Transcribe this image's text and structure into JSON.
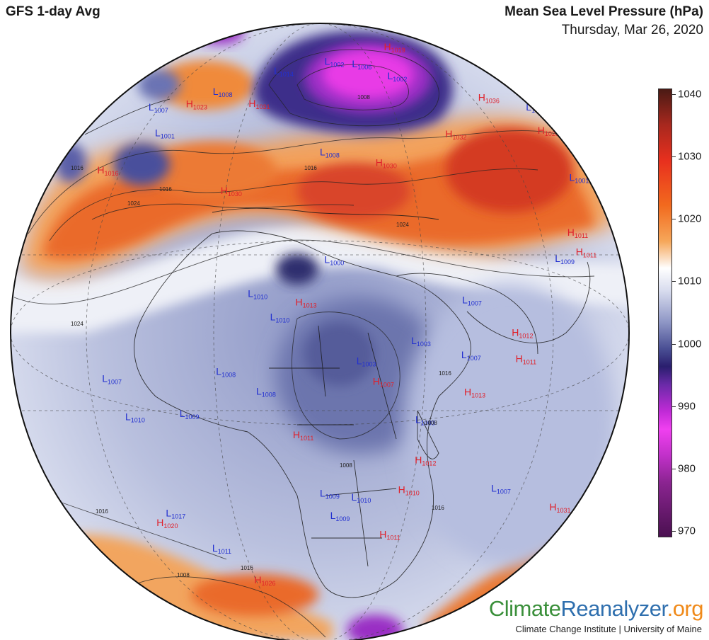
{
  "header": {
    "model_title": "GFS 1-day Avg",
    "variable_title": "Mean Sea Level Pressure (hPa)",
    "date": "Thursday, Mar 26, 2020"
  },
  "colorbar": {
    "ticks": [
      "1040",
      "1030",
      "1020",
      "1010",
      "1000",
      "990",
      "980",
      "970"
    ]
  },
  "branding": {
    "part1": "Climate",
    "part2": "Reanalyzer",
    "part3": ".org",
    "subtitle": "Climate Change Institute | University of Maine"
  },
  "colors": {
    "high_label": "#e0202a",
    "low_label": "#2230d0"
  },
  "pressure_centers": [
    {
      "type": "L",
      "value": "1007",
      "lat": 55,
      "lon": -60
    },
    {
      "type": "L",
      "value": "1001",
      "lat": 52,
      "lon": -45
    },
    {
      "type": "L",
      "value": "1000",
      "lat": 33,
      "lon": 16
    },
    {
      "type": "L",
      "value": "1010",
      "lat": 26,
      "lon": 0
    },
    {
      "type": "L",
      "value": "1010",
      "lat": 22,
      "lon": 5
    },
    {
      "type": "L",
      "value": "1003",
      "lat": 14,
      "lon": 22
    },
    {
      "type": "L",
      "value": "1003",
      "lat": 17,
      "lon": 33
    },
    {
      "type": "L",
      "value": "1007",
      "lat": 23,
      "lon": 45
    },
    {
      "type": "L",
      "value": "1007",
      "lat": 13,
      "lon": 43
    },
    {
      "type": "L",
      "value": "1008",
      "lat": 11,
      "lon": -5
    },
    {
      "type": "L",
      "value": "1008",
      "lat": 8,
      "lon": 3
    },
    {
      "type": "L",
      "value": "1007",
      "lat": 5,
      "lon": -30
    },
    {
      "type": "L",
      "value": "1010",
      "lat": -1,
      "lon": -24
    },
    {
      "type": "L",
      "value": "1009",
      "lat": 2,
      "lon": -12
    },
    {
      "type": "L",
      "value": "1003",
      "lat": 2,
      "lon": 33
    },
    {
      "type": "L",
      "value": "1009",
      "lat": -12,
      "lon": 15
    },
    {
      "type": "L",
      "value": "1010",
      "lat": -13,
      "lon": 21
    },
    {
      "type": "L",
      "value": "1009",
      "lat": -17,
      "lon": 17
    },
    {
      "type": "L",
      "value": "1007",
      "lat": -15,
      "lon": 50
    },
    {
      "type": "L",
      "value": "1017",
      "lat": -20,
      "lon": -17
    },
    {
      "type": "L",
      "value": "1011",
      "lat": -27,
      "lon": -8
    },
    {
      "type": "L",
      "value": "1009",
      "lat": 25,
      "lon": 72
    },
    {
      "type": "L",
      "value": "1001",
      "lat": 35,
      "lon": 95
    },
    {
      "type": "L",
      "value": "1012",
      "lat": 48,
      "lon": 110
    },
    {
      "type": "L",
      "value": "1002",
      "lat": 72,
      "lon": 60
    },
    {
      "type": "L",
      "value": "1008",
      "lat": 65,
      "lon": -40
    },
    {
      "type": "L",
      "value": "1014",
      "lat": 75,
      "lon": -20
    },
    {
      "type": "L",
      "value": "1002",
      "lat": 80,
      "lon": 20
    },
    {
      "type": "L",
      "value": "1006",
      "lat": 78,
      "lon": 45
    },
    {
      "type": "L",
      "value": "1008",
      "lat": 55,
      "lon": 15
    },
    {
      "type": "H",
      "value": "1013",
      "lat": 25,
      "lon": 10
    },
    {
      "type": "H",
      "value": "1016",
      "lat": 40,
      "lon": -55
    },
    {
      "type": "H",
      "value": "1030",
      "lat": 45,
      "lon": -12
    },
    {
      "type": "H",
      "value": "1023",
      "lat": 60,
      "lon": -45
    },
    {
      "type": "H",
      "value": "1031",
      "lat": 65,
      "lon": -18
    },
    {
      "type": "H",
      "value": "1036",
      "lat": 58,
      "lon": 90
    },
    {
      "type": "H",
      "value": "1032",
      "lat": 55,
      "lon": 60
    },
    {
      "type": "H",
      "value": "1028",
      "lat": 45,
      "lon": 100
    },
    {
      "type": "H",
      "value": "1030",
      "lat": 52,
      "lon": 32
    },
    {
      "type": "H",
      "value": "1011",
      "lat": 28,
      "lon": 80
    },
    {
      "type": "H",
      "value": "1011",
      "lat": 24,
      "lon": 80
    },
    {
      "type": "H",
      "value": "1012",
      "lat": 15,
      "lon": 55
    },
    {
      "type": "H",
      "value": "1011",
      "lat": 10,
      "lon": 55
    },
    {
      "type": "H",
      "value": "1013",
      "lat": 6,
      "lon": 43
    },
    {
      "type": "H",
      "value": "1007",
      "lat": 10,
      "lon": 25
    },
    {
      "type": "H",
      "value": "1011",
      "lat": 0,
      "lon": 10
    },
    {
      "type": "H",
      "value": "1012",
      "lat": -6,
      "lon": 33
    },
    {
      "type": "H",
      "value": "1010",
      "lat": -12,
      "lon": 30
    },
    {
      "type": "H",
      "value": "1011",
      "lat": -22,
      "lon": 27
    },
    {
      "type": "H",
      "value": "1020",
      "lat": -23,
      "lon": -20
    },
    {
      "type": "H",
      "value": "1026",
      "lat": -35,
      "lon": 0
    },
    {
      "type": "H",
      "value": "1031",
      "lat": -25,
      "lon": 70
    },
    {
      "type": "H",
      "value": "1019",
      "lat": 78,
      "lon": 100
    }
  ],
  "isobar_labels": [
    "1016",
    "1024",
    "1024",
    "1016",
    "1016",
    "1008",
    "1008",
    "1008",
    "1016",
    "1016",
    "1016",
    "1024",
    "1016",
    "1008"
  ]
}
